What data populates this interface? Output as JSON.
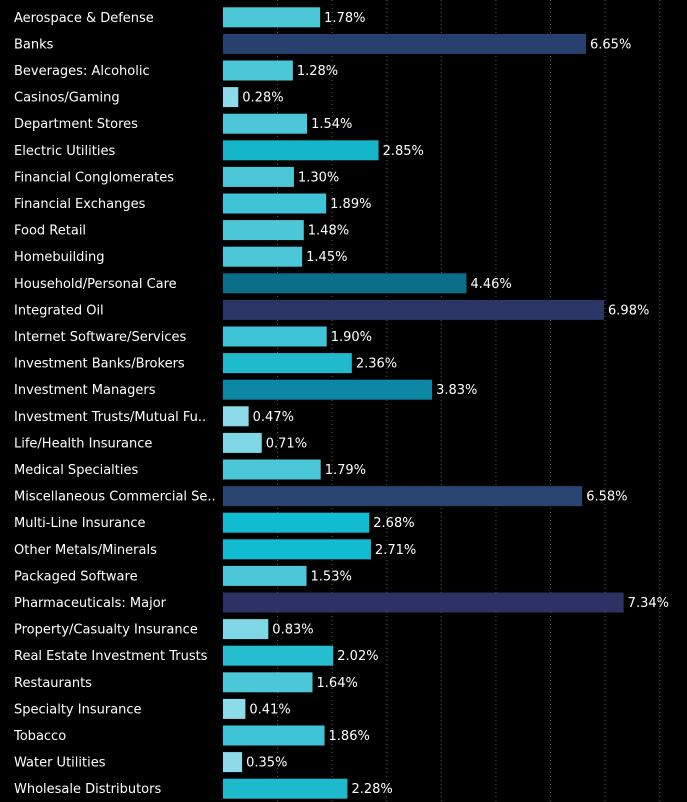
{
  "chart_data": {
    "type": "bar",
    "orientation": "horizontal",
    "categories": [
      "Aerospace & Defense",
      "Banks",
      "Beverages: Alcoholic",
      "Casinos/Gaming",
      "Department Stores",
      "Electric Utilities",
      "Financial Conglomerates",
      "Financial Exchanges",
      "Food Retail",
      "Homebuilding",
      "Household/Personal Care",
      "Integrated Oil",
      "Internet Software/Services",
      "Investment Banks/Brokers",
      "Investment Managers",
      "Investment Trusts/Mutual Fu..",
      "Life/Health Insurance",
      "Medical Specialties",
      "Miscellaneous Commercial Se..",
      "Multi-Line Insurance",
      "Other Metals/Minerals",
      "Packaged Software",
      "Pharmaceuticals: Major",
      "Property/Casualty Insurance",
      "Real Estate Investment Trusts",
      "Restaurants",
      "Specialty Insurance",
      "Tobacco",
      "Water Utilities",
      "Wholesale Distributors"
    ],
    "values": [
      1.78,
      6.65,
      1.28,
      0.28,
      1.54,
      2.85,
      1.3,
      1.89,
      1.48,
      1.45,
      4.46,
      6.98,
      1.9,
      2.36,
      3.83,
      0.47,
      0.71,
      1.79,
      6.58,
      2.68,
      2.71,
      1.53,
      7.34,
      0.83,
      2.02,
      1.64,
      0.41,
      1.86,
      0.35,
      2.28
    ],
    "value_labels": [
      "1.78%",
      "6.65%",
      "1.28%",
      "0.28%",
      "1.54%",
      "2.85%",
      "1.30%",
      "1.89%",
      "1.48%",
      "1.45%",
      "4.46%",
      "6.98%",
      "1.90%",
      "2.36%",
      "3.83%",
      "0.47%",
      "0.71%",
      "1.79%",
      "6.58%",
      "2.68%",
      "2.71%",
      "1.53%",
      "7.34%",
      "0.83%",
      "2.02%",
      "1.64%",
      "0.41%",
      "1.86%",
      "0.35%",
      "2.28%"
    ],
    "colors": [
      "#4cc7d8",
      "#27406e",
      "#4cc7d8",
      "#8ddbe8",
      "#4cc7d8",
      "#14b4c9",
      "#4cc7d8",
      "#3fc3d6",
      "#4cc7d8",
      "#4cc7d8",
      "#0b6f8a",
      "#2b3566",
      "#3fc3d6",
      "#20bacd",
      "#0d87a3",
      "#8ddbe8",
      "#7fd6e4",
      "#4cc7d8",
      "#27456f",
      "#12bcd0",
      "#12bcd0",
      "#4cc7d8",
      "#2e3163",
      "#7fd6e4",
      "#26bdd0",
      "#4cc7d8",
      "#8ddbe8",
      "#3fc3d6",
      "#8ddbe8",
      "#1dbacd"
    ],
    "xlim": [
      0,
      8.5
    ],
    "xticks": [
      1,
      2,
      3,
      4,
      5,
      6,
      7,
      8
    ],
    "grid": true
  }
}
